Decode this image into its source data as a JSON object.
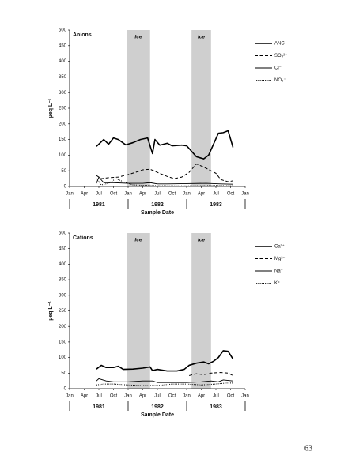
{
  "chart_data": [
    {
      "type": "line",
      "title": "Anions",
      "y_label": "µeq L⁻¹",
      "x_label": "Sample Date",
      "xlim": [
        0,
        36
      ],
      "ylim": [
        0,
        500
      ],
      "yticks": [
        0,
        50,
        100,
        150,
        200,
        250,
        300,
        350,
        400,
        450,
        500
      ],
      "xticks": [
        {
          "value": 0,
          "label": "Jan"
        },
        {
          "value": 3,
          "label": "Apr"
        },
        {
          "value": 6,
          "label": "Jul"
        },
        {
          "value": 9,
          "label": "Oct"
        },
        {
          "value": 12,
          "label": "Jan"
        },
        {
          "value": 15,
          "label": "Apr"
        },
        {
          "value": 18,
          "label": "Jul"
        },
        {
          "value": 21,
          "label": "Oct"
        },
        {
          "value": 24,
          "label": "Jan"
        },
        {
          "value": 27,
          "label": "Apr"
        },
        {
          "value": 30,
          "label": "Jul"
        },
        {
          "value": 33,
          "label": "Oct"
        },
        {
          "value": 36,
          "label": "Jan"
        }
      ],
      "year_labels": [
        {
          "value": 6,
          "label": "1981"
        },
        {
          "value": 18,
          "label": "1982"
        },
        {
          "value": 30,
          "label": "1983"
        }
      ],
      "year_dividers": [
        0,
        12,
        24,
        36
      ],
      "shaded_regions": [
        {
          "label": "Ice",
          "start": 11.7,
          "end": 16.5
        },
        {
          "label": "Ice",
          "start": 25,
          "end": 29
        }
      ],
      "series": [
        {
          "name": "ANC",
          "color": "#000",
          "dash": "solid",
          "line_width": 1.6,
          "x": [
            5.5,
            7,
            8,
            9,
            10,
            11.5,
            13,
            14.5,
            16,
            17,
            17.5,
            18.5,
            20,
            21,
            23,
            24,
            26,
            27.5,
            28.5,
            29.5,
            30.5,
            31.5,
            32.5,
            33.5
          ],
          "values": [
            128,
            150,
            135,
            155,
            150,
            133,
            140,
            150,
            155,
            105,
            150,
            132,
            138,
            130,
            132,
            130,
            95,
            88,
            100,
            135,
            170,
            172,
            178,
            125
          ]
        },
        {
          "name": "SO₄²⁻",
          "color": "#000",
          "dash": "dashed",
          "line_width": 1,
          "x": [
            5.5,
            6.5,
            8,
            10,
            12,
            13.5,
            15,
            16.5,
            18,
            20,
            21.5,
            23,
            24.5,
            26,
            27.5,
            29,
            30,
            31,
            32.5,
            33.5
          ],
          "values": [
            35,
            25,
            28,
            30,
            38,
            45,
            53,
            55,
            45,
            32,
            25,
            30,
            45,
            72,
            62,
            50,
            42,
            22,
            15,
            18
          ]
        },
        {
          "name": "Cl⁻",
          "color": "#000",
          "dash": "solid",
          "line_width": 0.9,
          "x": [
            5.5,
            6,
            7,
            9,
            12,
            15,
            16.5,
            18,
            20,
            24,
            28,
            31,
            33.5
          ],
          "values": [
            10,
            30,
            12,
            12,
            10,
            10,
            12,
            8,
            8,
            9,
            10,
            8,
            7
          ]
        },
        {
          "name": "NO₃⁻",
          "color": "#000",
          "dash": "dotted",
          "line_width": 1,
          "x": [
            5.5,
            6.5,
            8,
            9.5,
            11,
            13,
            16,
            20,
            26,
            30,
            33.5
          ],
          "values": [
            25,
            5,
            10,
            25,
            15,
            5,
            3,
            2,
            2,
            3,
            2
          ]
        }
      ]
    },
    {
      "type": "line",
      "title": "Cations",
      "y_label": "µeq L⁻¹",
      "x_label": "Sample Date",
      "xlim": [
        0,
        36
      ],
      "ylim": [
        0,
        500
      ],
      "yticks": [
        0,
        50,
        100,
        150,
        200,
        250,
        300,
        350,
        400,
        450,
        500
      ],
      "xticks": [
        {
          "value": 0,
          "label": "Jan"
        },
        {
          "value": 3,
          "label": "Apr"
        },
        {
          "value": 6,
          "label": "Jul"
        },
        {
          "value": 9,
          "label": "Oct"
        },
        {
          "value": 12,
          "label": "Jan"
        },
        {
          "value": 15,
          "label": "Apr"
        },
        {
          "value": 18,
          "label": "Jul"
        },
        {
          "value": 21,
          "label": "Oct"
        },
        {
          "value": 24,
          "label": "Jan"
        },
        {
          "value": 27,
          "label": "Apr"
        },
        {
          "value": 30,
          "label": "Jul"
        },
        {
          "value": 33,
          "label": "Oct"
        },
        {
          "value": 36,
          "label": "Jan"
        }
      ],
      "year_labels": [
        {
          "value": 6,
          "label": "1981"
        },
        {
          "value": 18,
          "label": "1982"
        },
        {
          "value": 30,
          "label": "1983"
        }
      ],
      "year_dividers": [
        0,
        12,
        24,
        36
      ],
      "shaded_regions": [
        {
          "label": "Ice",
          "start": 11.7,
          "end": 16.5
        },
        {
          "label": "Ice",
          "start": 25,
          "end": 29
        }
      ],
      "series": [
        {
          "name": "Ca²⁺",
          "color": "#000",
          "dash": "solid",
          "line_width": 1.6,
          "x": [
            5.5,
            6.5,
            7.5,
            9,
            10,
            11,
            13,
            15,
            16.5,
            17,
            18,
            20,
            22,
            23.5,
            24.5,
            26,
            27.5,
            28.5,
            29.5,
            30.5,
            31.5,
            32.5,
            33.5
          ],
          "values": [
            63,
            75,
            68,
            68,
            72,
            62,
            63,
            66,
            70,
            58,
            62,
            57,
            57,
            62,
            75,
            82,
            86,
            80,
            88,
            100,
            122,
            120,
            95
          ]
        },
        {
          "name": "Mg²⁺",
          "color": "#000",
          "dash": "dashed",
          "line_width": 1,
          "x": [
            24.5,
            26,
            27.5,
            29,
            31,
            32.5,
            33.5
          ],
          "values": [
            42,
            48,
            45,
            50,
            52,
            50,
            42
          ]
        },
        {
          "name": "Na⁺",
          "color": "#000",
          "dash": "solid",
          "line_width": 0.9,
          "x": [
            5.5,
            6,
            7.5,
            9,
            12,
            15,
            17,
            18,
            21,
            24,
            27,
            29,
            30.5,
            31.5,
            33.5
          ],
          "values": [
            25,
            32,
            25,
            22,
            22,
            25,
            25,
            20,
            20,
            20,
            22,
            25,
            22,
            28,
            25
          ]
        },
        {
          "name": "K⁺",
          "color": "#000",
          "dash": "dotted",
          "line_width": 1,
          "x": [
            5.5,
            7,
            9,
            12,
            15,
            18,
            21,
            24,
            27,
            30,
            32,
            33.5
          ],
          "values": [
            12,
            15,
            15,
            12,
            10,
            10,
            15,
            15,
            12,
            15,
            18,
            18
          ]
        }
      ]
    }
  ],
  "page_number": "63"
}
